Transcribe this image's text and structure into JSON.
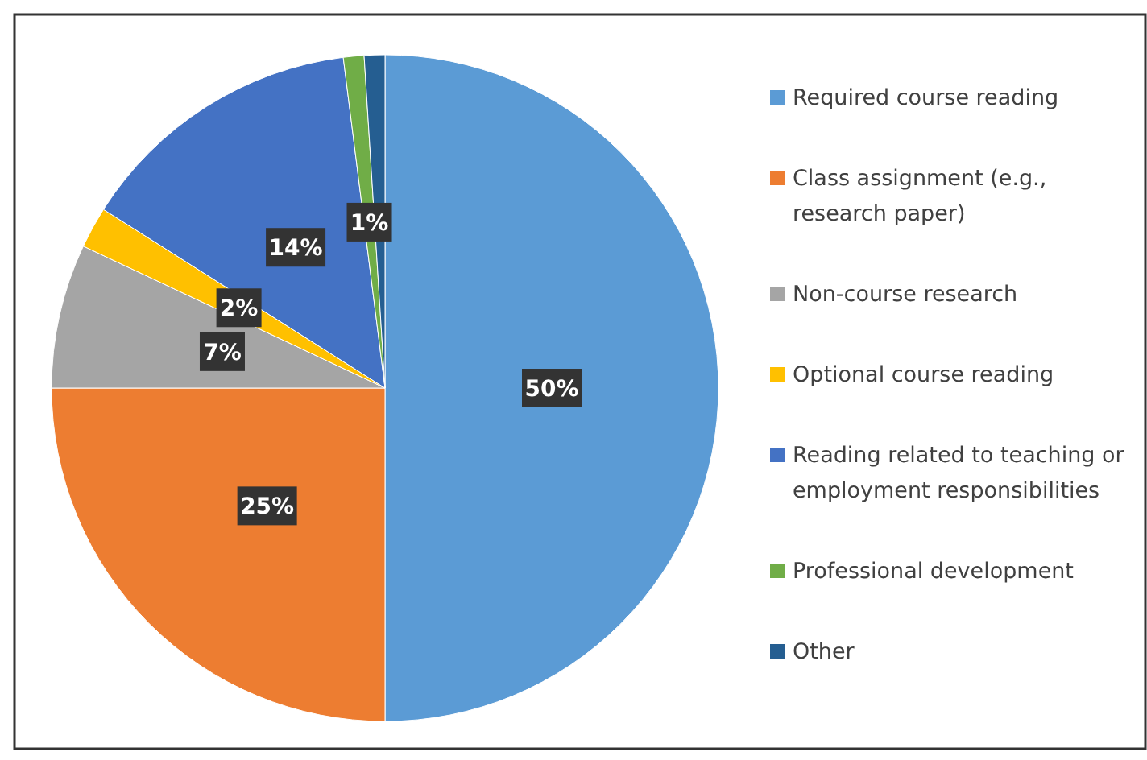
{
  "chart_data": {
    "type": "pie",
    "categories": [
      "Required course reading",
      "Class assignment (e.g., research paper)",
      "Non-course research",
      "Optional course reading",
      "Reading related to teaching or employment responsibilities",
      "Professional development",
      "Other"
    ],
    "values": [
      50,
      25,
      7,
      2,
      14,
      1,
      1
    ],
    "colors": [
      "#5b9bd5",
      "#ed7d31",
      "#a5a5a5",
      "#ffc000",
      "#4472c4",
      "#70ad47",
      "#255e91"
    ],
    "value_labels": [
      "50%",
      "25%",
      "7%",
      "2%",
      "14%",
      "1%",
      null
    ],
    "legend": "right"
  }
}
